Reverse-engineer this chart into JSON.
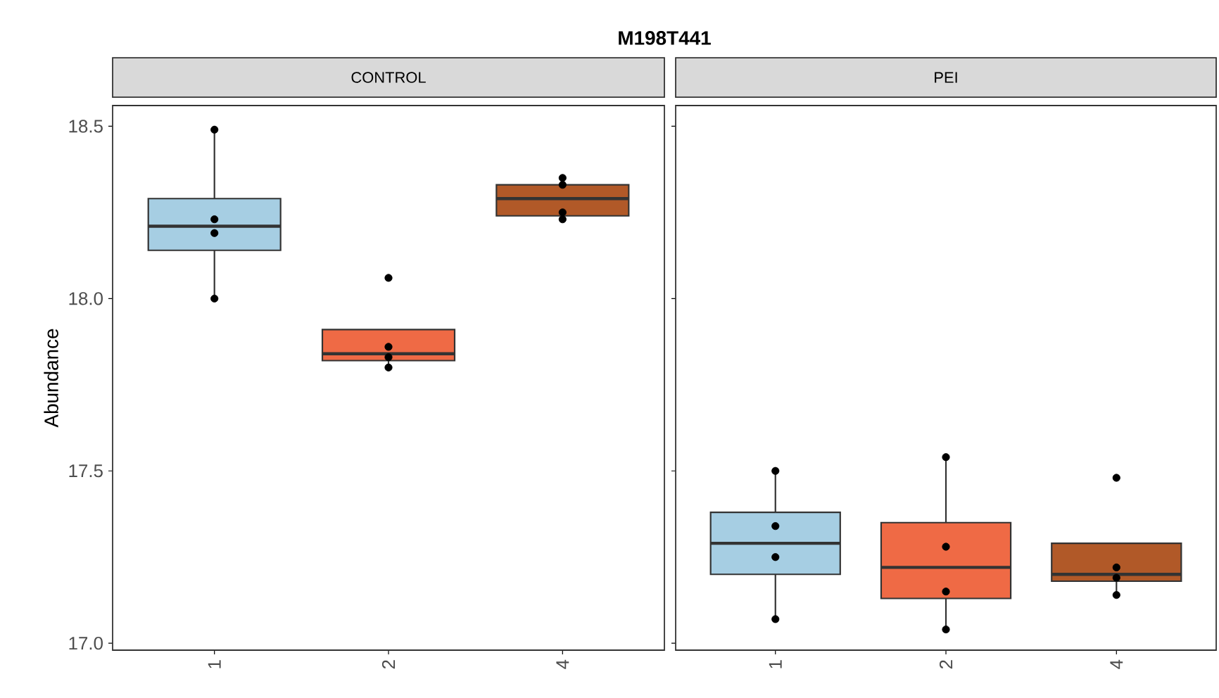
{
  "chart_data": [
    {
      "type": "box",
      "title": "M198T441",
      "subtitle": "CONTROL",
      "ylabel": "Abundance",
      "categories": [
        "1",
        "2",
        "4"
      ],
      "ylim": [
        16.98,
        18.56
      ],
      "yticks": [
        {
          "value": 17,
          "label": "17.0"
        },
        {
          "value": 17.5,
          "label": "17.5"
        },
        {
          "value": 18,
          "label": "18.0"
        },
        {
          "value": 18.5,
          "label": "18.5"
        }
      ],
      "series": [
        {
          "colors": [
            "#a6cee3",
            "#ef6a45",
            "#b15928"
          ],
          "boxes": [
            {
              "low": 18.0,
              "q1": 18.14,
              "median": 18.21,
              "q3": 18.29,
              "high": 18.49
            },
            {
              "low": 17.8,
              "q1": 17.82,
              "median": 17.84,
              "q3": 17.91,
              "high": 17.86
            },
            {
              "low": 18.23,
              "q1": 18.24,
              "median": 18.29,
              "q3": 18.33,
              "high": 18.35
            }
          ]
        },
        {
          "type": "scatter",
          "color": "#000000",
          "marker": "circle",
          "x": [
            "1",
            "1",
            "1",
            "1",
            "2",
            "2",
            "2",
            "2",
            "4",
            "4",
            "4",
            "4"
          ],
          "values": [
            18.49,
            18.23,
            18.19,
            18.0,
            18.06,
            17.86,
            17.83,
            17.8,
            18.33,
            18.35,
            18.23,
            18.25
          ]
        }
      ]
    },
    {
      "type": "box",
      "subtitle": "PEI",
      "categories": [
        "1",
        "2",
        "4"
      ],
      "ylim": [
        16.98,
        18.56
      ],
      "tick_labels": "x",
      "series": [
        {
          "colors": [
            "#a6cee3",
            "#ef6a45",
            "#b15928"
          ],
          "boxes": [
            {
              "low": 17.07,
              "q1": 17.2,
              "median": 17.29,
              "q3": 17.38,
              "high": 17.5
            },
            {
              "low": 17.04,
              "q1": 17.13,
              "median": 17.22,
              "q3": 17.35,
              "high": 17.54
            },
            {
              "low": 17.14,
              "q1": 17.18,
              "median": 17.2,
              "q3": 17.29,
              "high": 17.22
            }
          ]
        },
        {
          "type": "scatter",
          "color": "#000000",
          "marker": "circle",
          "x": [
            "1",
            "1",
            "1",
            "1",
            "2",
            "2",
            "2",
            "2",
            "4",
            "4",
            "4",
            "4"
          ],
          "values": [
            17.5,
            17.34,
            17.25,
            17.07,
            17.54,
            17.28,
            17.15,
            17.04,
            17.48,
            17.22,
            17.19,
            17.14
          ]
        }
      ]
    }
  ]
}
